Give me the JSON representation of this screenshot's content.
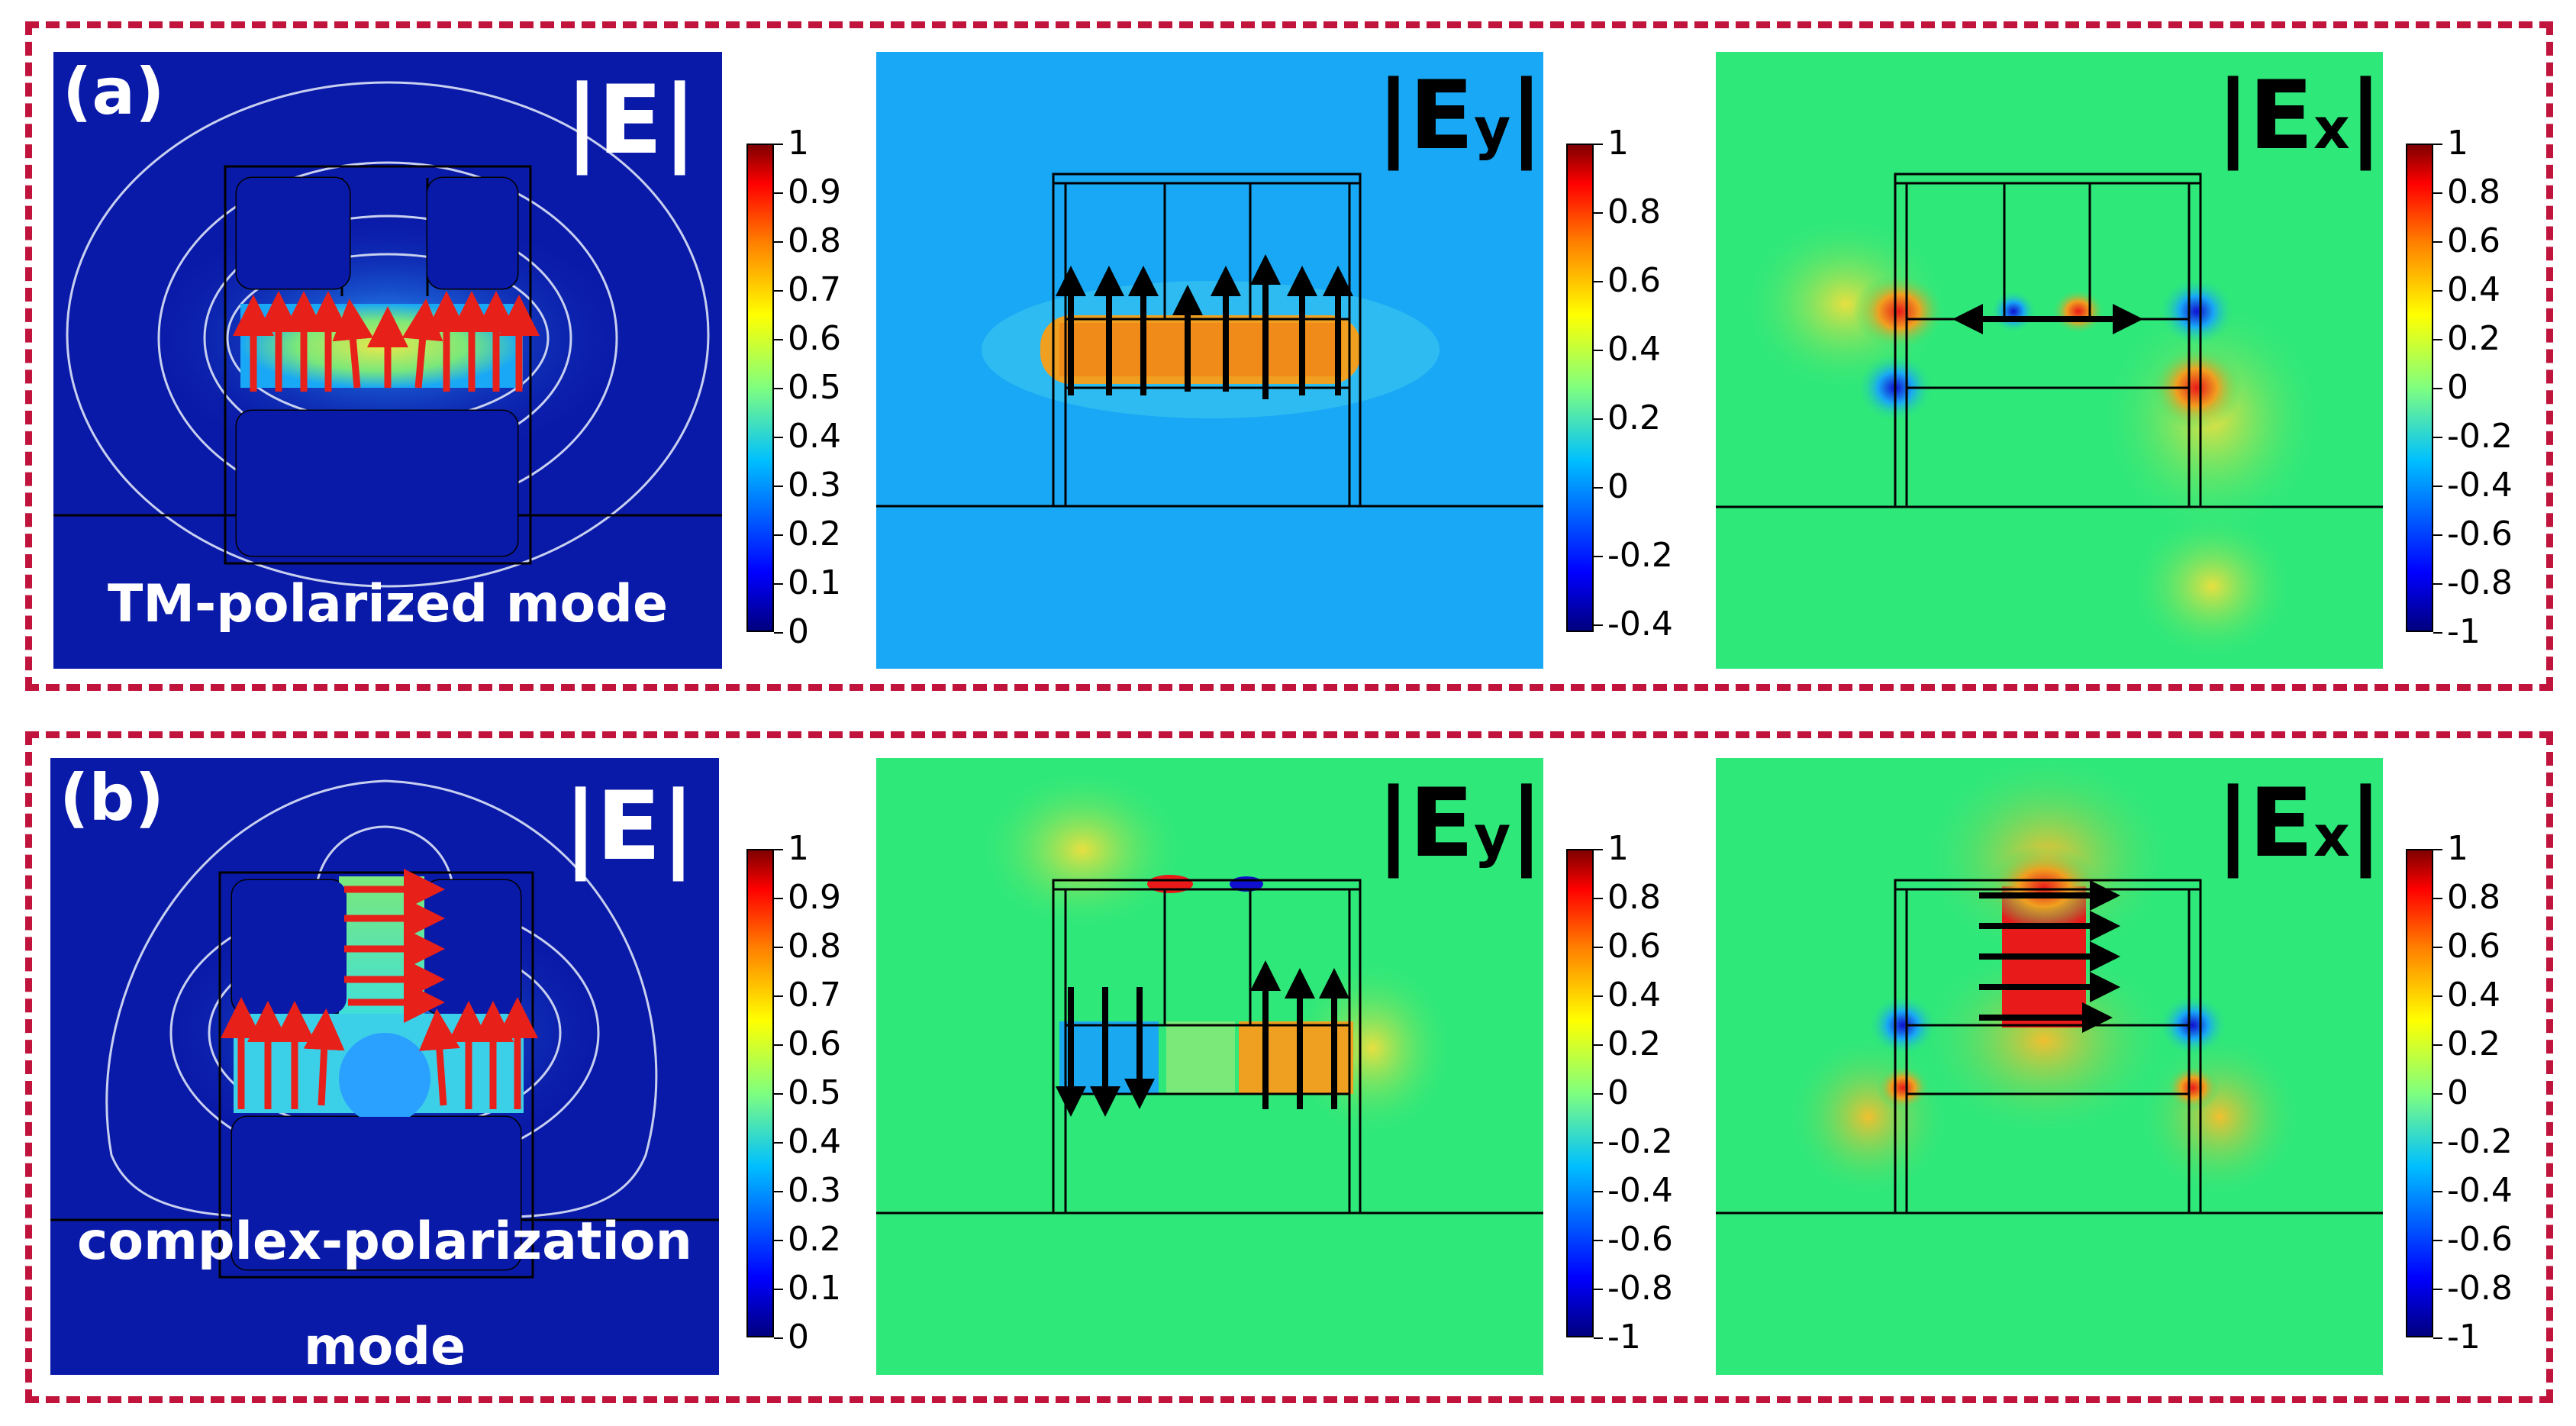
{
  "rows": [
    {
      "tag": "(a)",
      "mode_label_lines": [
        "TM-polarized mode"
      ],
      "panels": [
        {
          "title_main": "|E",
          "title_sub": "",
          "title_end": "|",
          "colorbar_ticks": [
            "1",
            "0.9",
            "0.8",
            "0.7",
            "0.6",
            "0.5",
            "0.4",
            "0.3",
            "0.2",
            "0.1",
            "0"
          ]
        },
        {
          "title_main": "|E",
          "title_sub": "y",
          "title_end": "|",
          "colorbar_ticks": [
            "1",
            "0.8",
            "0.6",
            "0.4",
            "0.2",
            "0",
            "-0.2",
            "-0.4"
          ]
        },
        {
          "title_main": "|E",
          "title_sub": "x",
          "title_end": "|",
          "colorbar_ticks": [
            "1",
            "0.8",
            "0.6",
            "0.4",
            "0.2",
            "0",
            "-0.2",
            "-0.4",
            "-0.6",
            "-0.8",
            "-1"
          ]
        }
      ]
    },
    {
      "tag": "(b)",
      "mode_label_lines": [
        "complex-polarization",
        "mode"
      ],
      "panels": [
        {
          "title_main": "|E",
          "title_sub": "",
          "title_end": "|",
          "colorbar_ticks": [
            "1",
            "0.9",
            "0.8",
            "0.7",
            "0.6",
            "0.5",
            "0.4",
            "0.3",
            "0.2",
            "0.1",
            "0"
          ]
        },
        {
          "title_main": "|E",
          "title_sub": "y",
          "title_end": "|",
          "colorbar_ticks": [
            "1",
            "0.8",
            "0.6",
            "0.4",
            "0.2",
            "0",
            "-0.2",
            "-0.4",
            "-0.6",
            "-0.8",
            "-1"
          ]
        },
        {
          "title_main": "|E",
          "title_sub": "x",
          "title_end": "|",
          "colorbar_ticks": [
            "1",
            "0.8",
            "0.6",
            "0.4",
            "0.2",
            "0",
            "-0.2",
            "-0.4",
            "-0.6",
            "-0.8",
            "-1"
          ]
        }
      ]
    }
  ],
  "colors": {
    "border": "#c0143c",
    "field_bg_dark": "#0a1aa8",
    "field_bg_green": "#2ee87a",
    "field_bg_blue": "#19a8f5",
    "arrow_red": "#e8201a",
    "arrow_black": "#000000"
  }
}
